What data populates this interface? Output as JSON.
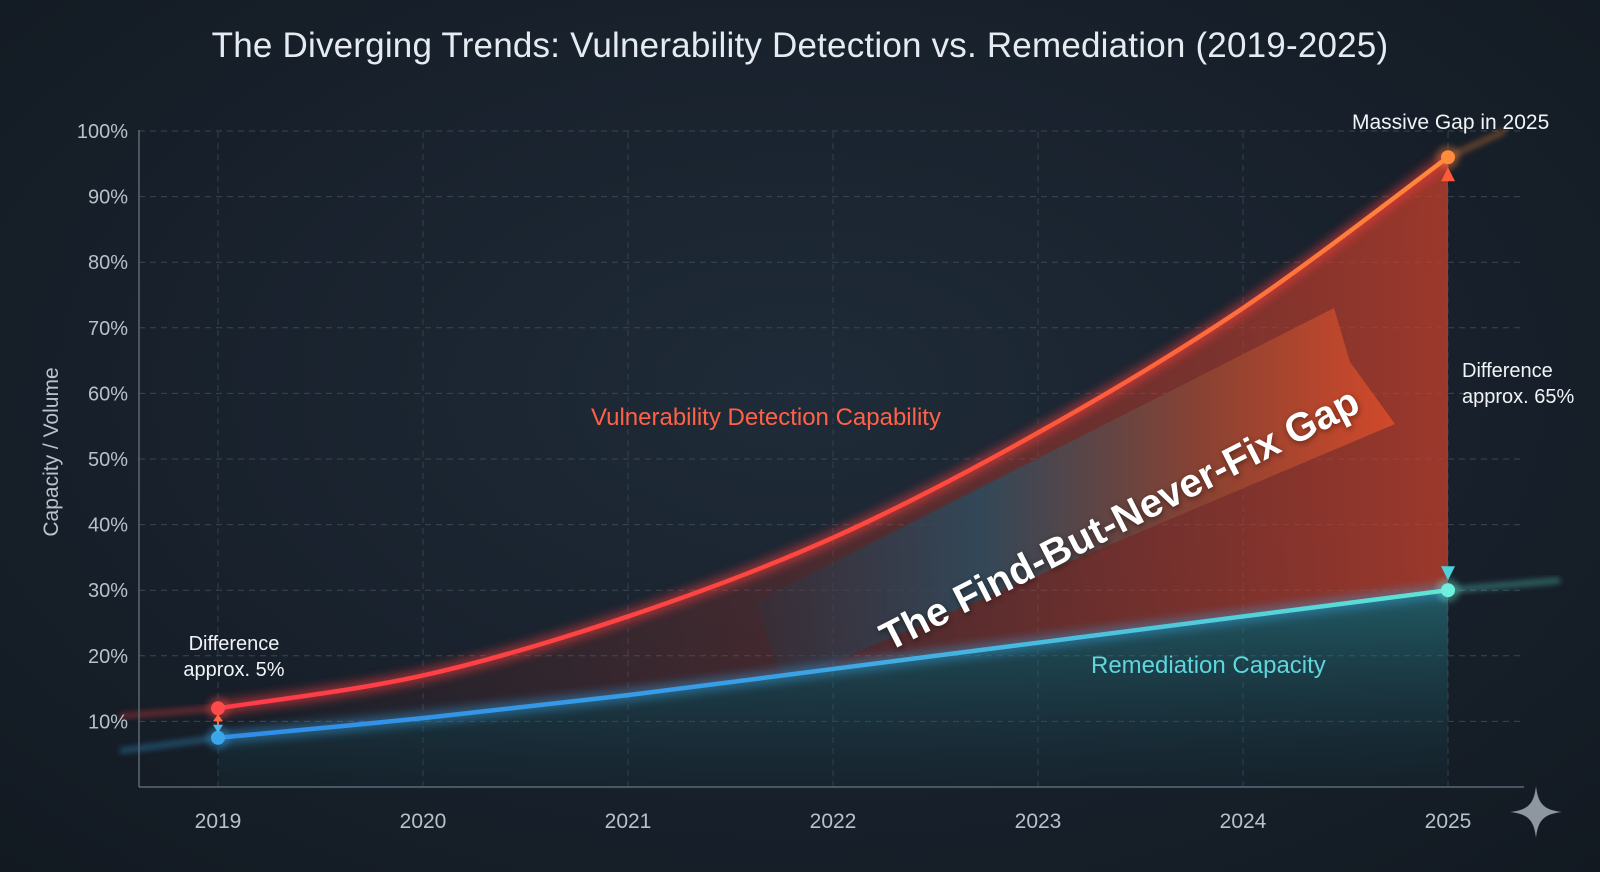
{
  "chart_data": {
    "type": "line",
    "title": "The Diverging Trends: Vulnerability Detection vs. Remediation (2019-2025)",
    "xlabel": "",
    "ylabel": "Capacity / Volume",
    "categories": [
      "2019",
      "2020",
      "2021",
      "2022",
      "2023",
      "2024",
      "2025"
    ],
    "ylim": [
      0,
      100
    ],
    "yticks": [
      "100%",
      "90%",
      "80%",
      "70%",
      "60%",
      "50%",
      "40%",
      "30%",
      "20%",
      "10%"
    ],
    "ytick_values": [
      100,
      90,
      80,
      70,
      60,
      50,
      40,
      30,
      20,
      10
    ],
    "grid": true,
    "series": [
      {
        "name": "Vulnerability Detection Capability",
        "color": "#ff4a4a",
        "values": [
          12,
          17,
          26,
          38,
          54,
          73,
          96
        ]
      },
      {
        "name": "Remediation Capacity",
        "color": "#4fd1d9",
        "values": [
          7.5,
          10.5,
          14,
          18,
          22,
          26,
          30
        ]
      }
    ],
    "annotations": {
      "start_line1": "Difference",
      "start_line2": "approx. 5%",
      "end_title": "Massive Gap in 2025",
      "end_line1": "Difference",
      "end_line2": "approx. 65%",
      "gap_label": "The Find-But-Never-Fix Gap"
    }
  }
}
